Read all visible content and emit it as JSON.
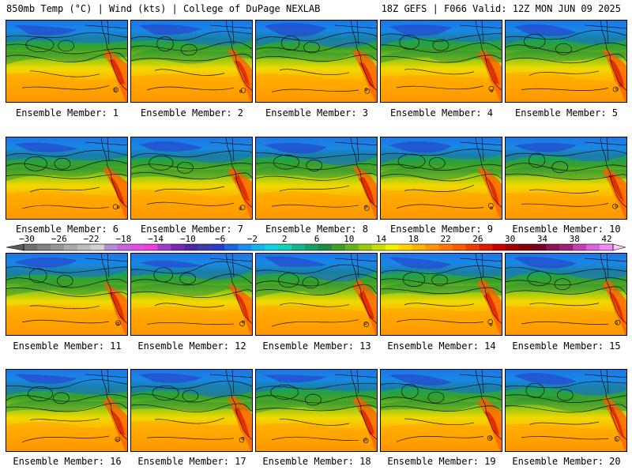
{
  "header": {
    "left": "850mb Temp (°C) | Wind (kts) | College of DuPage NEXLAB",
    "right": "18Z GEFS | F066 Valid: 12Z MON JUN 09 2025"
  },
  "panels": [
    {
      "caption": "Ensemble Member: 1"
    },
    {
      "caption": "Ensemble Member: 2"
    },
    {
      "caption": "Ensemble Member: 3"
    },
    {
      "caption": "Ensemble Member: 4"
    },
    {
      "caption": "Ensemble Member: 5"
    },
    {
      "caption": "Ensemble Member: 6"
    },
    {
      "caption": "Ensemble Member: 7"
    },
    {
      "caption": "Ensemble Member: 8"
    },
    {
      "caption": "Ensemble Member: 9"
    },
    {
      "caption": "Ensemble Member: 10"
    },
    {
      "caption": "Ensemble Member: 11"
    },
    {
      "caption": "Ensemble Member: 12"
    },
    {
      "caption": "Ensemble Member: 13"
    },
    {
      "caption": "Ensemble Member: 14"
    },
    {
      "caption": "Ensemble Member: 15"
    },
    {
      "caption": "Ensemble Member: 16"
    },
    {
      "caption": "Ensemble Member: 17"
    },
    {
      "caption": "Ensemble Member: 18"
    },
    {
      "caption": "Ensemble Member: 19"
    },
    {
      "caption": "Ensemble Member: 20"
    }
  ],
  "colorbar": {
    "labels": [
      "−30",
      "−26",
      "−22",
      "−18",
      "−14",
      "−10",
      "−6",
      "−2",
      "2",
      "6",
      "10",
      "14",
      "18",
      "22",
      "26",
      "30",
      "34",
      "38",
      "42"
    ],
    "colors": [
      "#6e6e6e",
      "#828282",
      "#969696",
      "#aaaaaa",
      "#bebebe",
      "#d2d2d2",
      "#b48cd2",
      "#c864dc",
      "#e04ee6",
      "#f03cdc",
      "#a03cc8",
      "#7828b4",
      "#5028a0",
      "#3c3caa",
      "#283cc8",
      "#1e64dc",
      "#1e8cf0",
      "#14b4f0",
      "#14d2e6",
      "#14d2b4",
      "#14b48c",
      "#14a064",
      "#1e8c3c",
      "#3ca028",
      "#64b41e",
      "#96c814",
      "#c8dc0a",
      "#f0f000",
      "#ffd200",
      "#ffb400",
      "#ff9600",
      "#ff7800",
      "#ff5a00",
      "#f03c00",
      "#dc1e00",
      "#c80000",
      "#a00000",
      "#820000",
      "#780028",
      "#8c1450",
      "#a01e78",
      "#c83cb4",
      "#dc64dc",
      "#f08cf0"
    ]
  }
}
